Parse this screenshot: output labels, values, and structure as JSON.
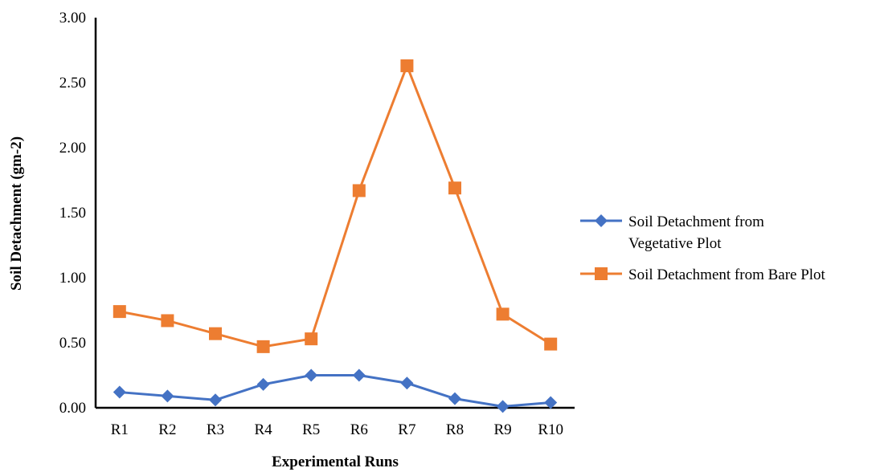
{
  "chart_data": {
    "type": "line",
    "categories": [
      "R1",
      "R2",
      "R3",
      "R4",
      "R5",
      "R6",
      "R7",
      "R8",
      "R9",
      "R10"
    ],
    "series": [
      {
        "name": "Soil Detachment from Vegetative Plot",
        "legend_lines": [
          "Soil Detachment from",
          "Vegetative Plot"
        ],
        "color": "#4472C4",
        "marker": "diamond",
        "values": [
          0.12,
          0.09,
          0.06,
          0.18,
          0.25,
          0.25,
          0.19,
          0.07,
          0.01,
          0.04
        ]
      },
      {
        "name": "Soil Detachment from Bare Plot",
        "legend_lines": [
          "Soil Detachment from Bare Plot"
        ],
        "color": "#ED7D31",
        "marker": "square",
        "values": [
          0.74,
          0.67,
          0.57,
          0.47,
          0.53,
          1.67,
          2.63,
          1.69,
          0.72,
          0.49
        ]
      }
    ],
    "title": "",
    "xlabel": "Experimental Runs",
    "ylabel": "Soil Detachment (gm-2)",
    "ylim": [
      0,
      3
    ],
    "yticks": [
      "0.00",
      "0.50",
      "1.00",
      "1.50",
      "2.00",
      "2.50",
      "3.00"
    ],
    "grid": false,
    "legend_position": "right"
  }
}
